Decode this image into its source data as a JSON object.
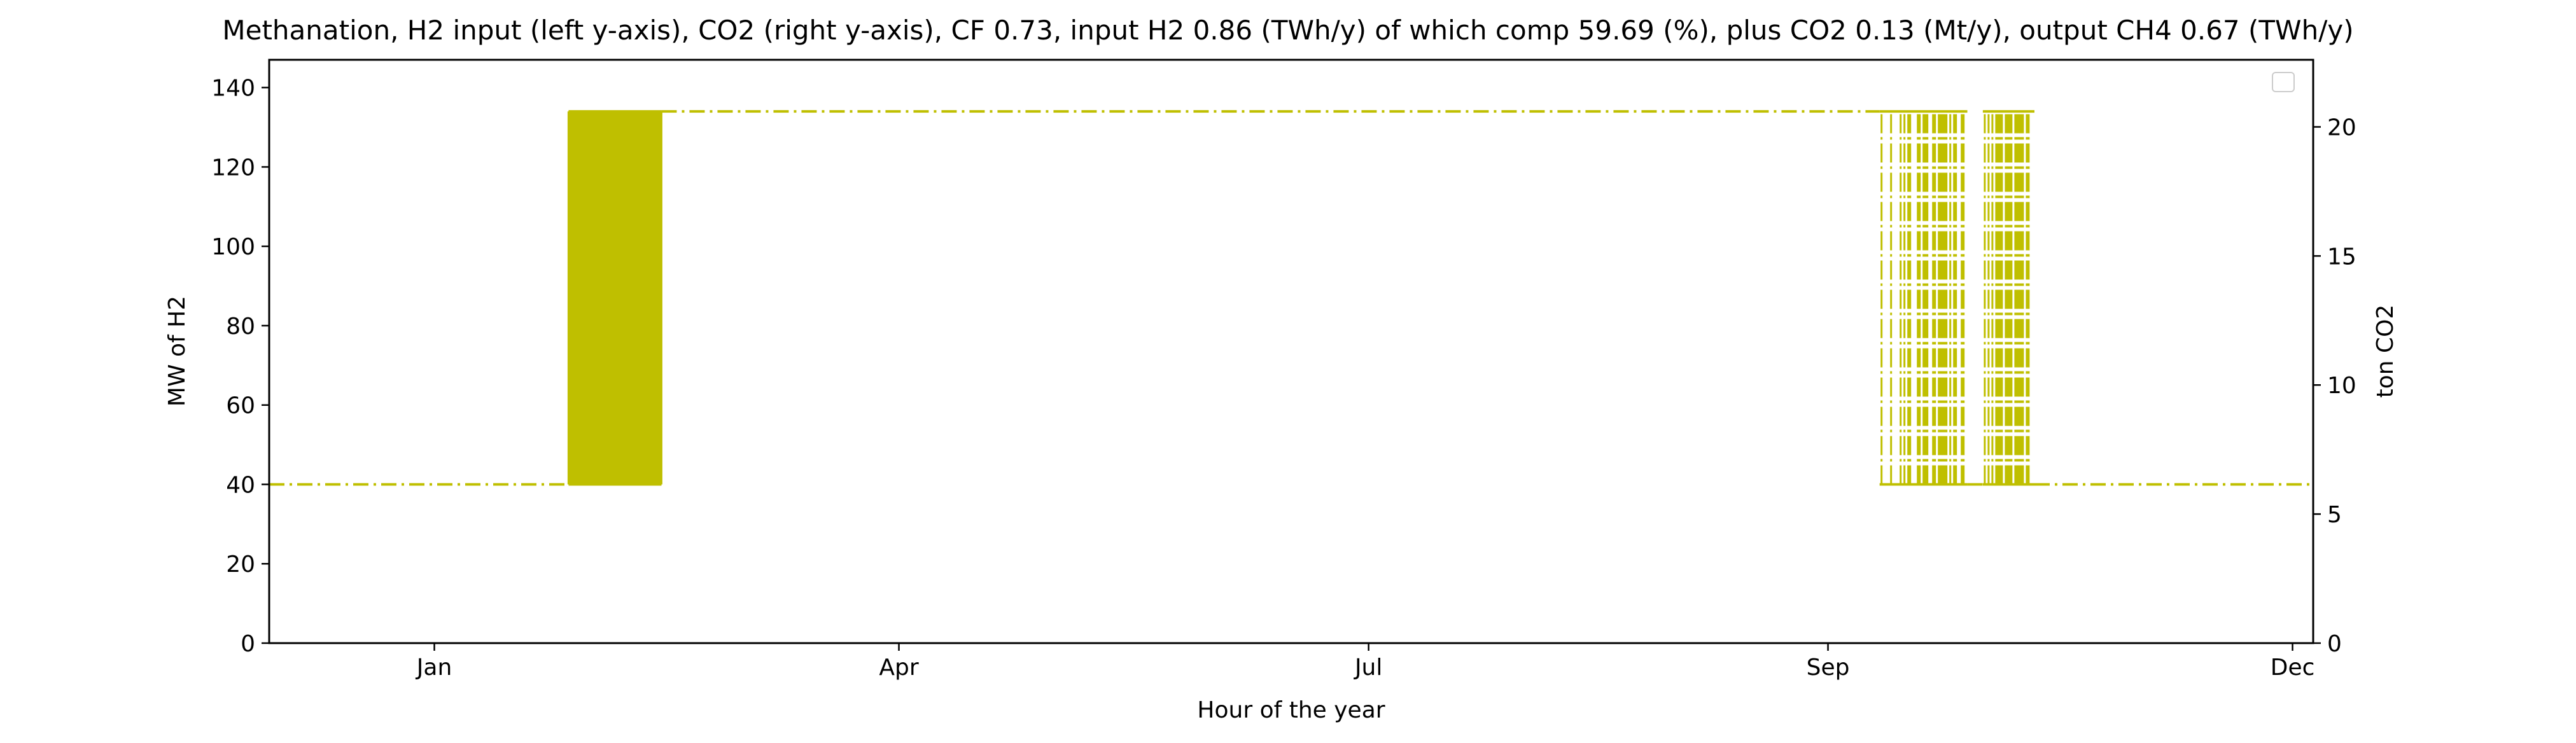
{
  "chart_data": {
    "type": "line",
    "title": "Methanation, H2 input (left y-axis), CO2 (right y-axis), CF 0.73, input H2 0.86 (TWh/y) of which comp 59.69 (%), plus CO2 0.13 (Mt/y), output CH4 0.67 (TWh/y)",
    "xlabel": "Hour of the year",
    "ylabel": "MW of H2",
    "ylabel_right": "ton CO2",
    "x_unit": "day of year",
    "xlim": [
      -15,
      381
    ],
    "ylim": [
      0,
      147
    ],
    "ylim_right": [
      0,
      22.6
    ],
    "x_ticks": [
      {
        "label": "Jan",
        "value": 17
      },
      {
        "label": "Apr",
        "value": 107
      },
      {
        "label": "Jul",
        "value": 198
      },
      {
        "label": "Sep",
        "value": 287
      },
      {
        "label": "Dec",
        "value": 377
      }
    ],
    "y_ticks": [
      0,
      20,
      40,
      60,
      80,
      100,
      120,
      140
    ],
    "y_ticks_right": [
      0,
      5,
      10,
      15,
      20
    ],
    "legend": {
      "placement": "top-right",
      "entries": []
    },
    "grid": false,
    "series": [
      {
        "color": "#bfbf00",
        "linestyle": "dashdot",
        "segments": [
          {
            "start": -15,
            "end": 43,
            "pattern": "constant",
            "low": 40,
            "high": 40
          },
          {
            "start": 43,
            "end": 61,
            "pattern": "dense",
            "low": 40,
            "high": 134
          },
          {
            "start": 61,
            "end": 297,
            "pattern": "constant",
            "low": 134,
            "high": 134
          },
          {
            "start": 297,
            "end": 314,
            "pattern": "bursts",
            "low": 40,
            "high": 134
          },
          {
            "start": 314,
            "end": 317,
            "pattern": "constant",
            "low": 40,
            "high": 40
          },
          {
            "start": 317,
            "end": 327,
            "pattern": "bursts",
            "low": 40,
            "high": 134
          },
          {
            "start": 327,
            "end": 381,
            "pattern": "constant",
            "low": 40,
            "high": 40
          }
        ]
      }
    ]
  }
}
